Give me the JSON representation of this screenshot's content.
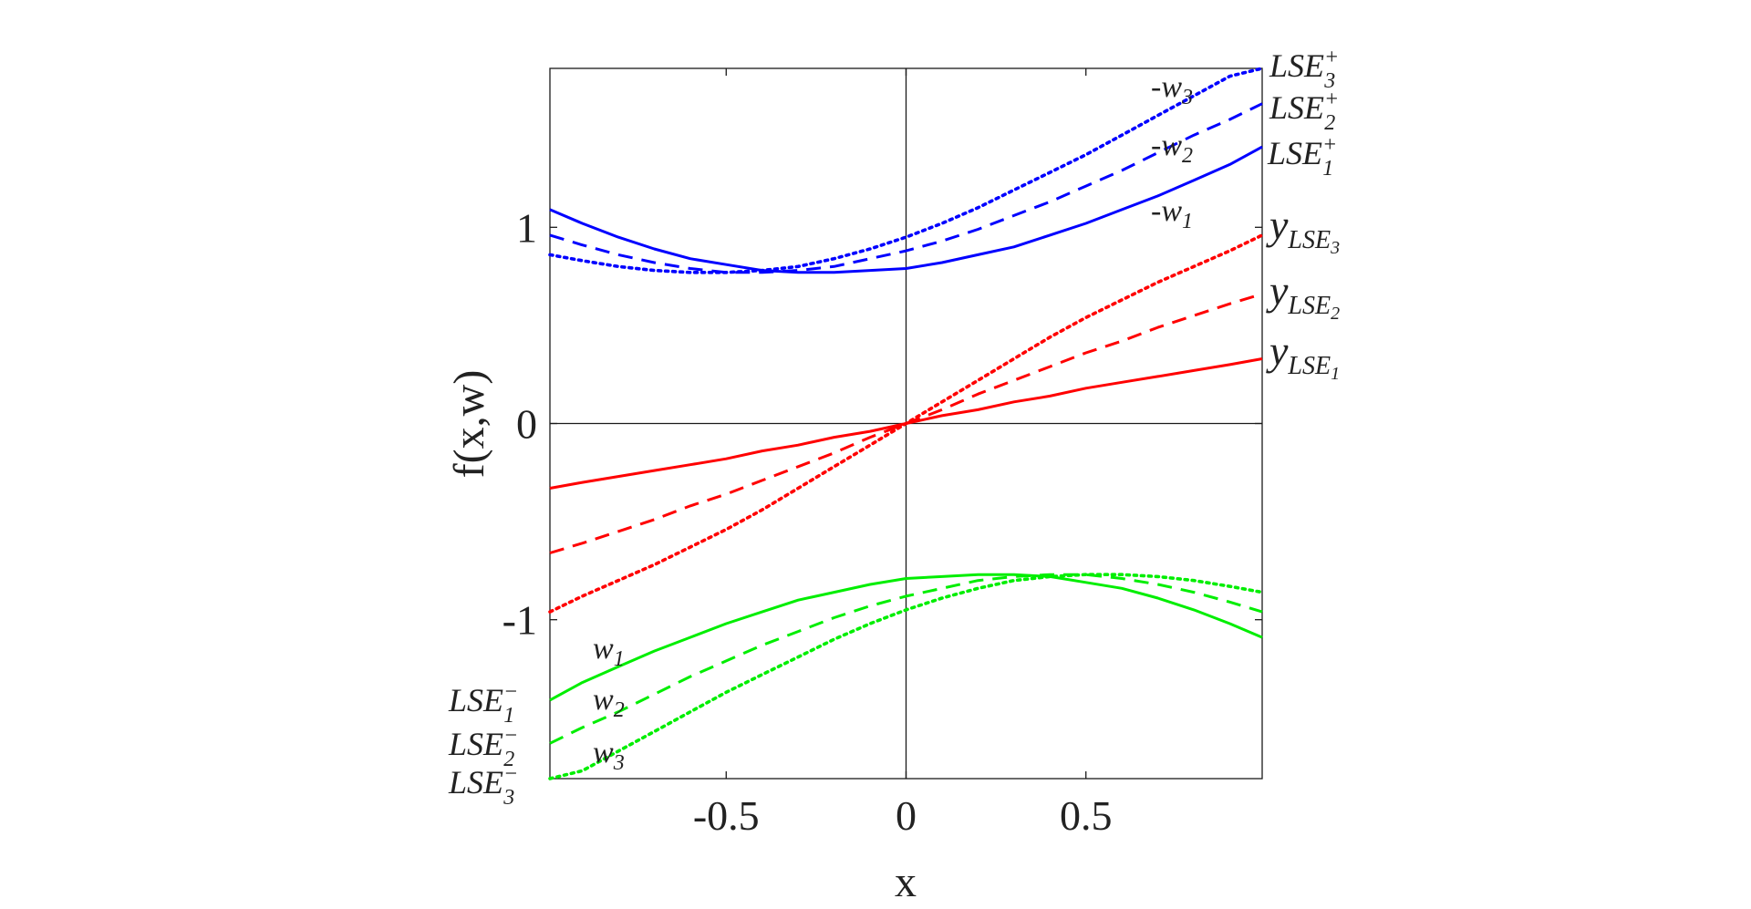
{
  "chart_data": {
    "type": "line",
    "title": "",
    "xlabel": "x",
    "ylabel": "f(x,w)",
    "xlim": [
      -0.99,
      0.99
    ],
    "ylim": [
      -1.81,
      1.81
    ],
    "xticks": [
      -0.5,
      0,
      0.5
    ],
    "xtick_labels": [
      "-0.5",
      "0",
      "0.5"
    ],
    "yticks": [
      -1,
      0,
      1
    ],
    "ytick_labels": [
      "-1",
      "0",
      "1"
    ],
    "grid": false,
    "zero_lines": true,
    "x": [
      -0.99,
      -0.9,
      -0.8,
      -0.7,
      -0.6,
      -0.5,
      -0.4,
      -0.3,
      -0.2,
      -0.1,
      0,
      0.1,
      0.2,
      0.3,
      0.4,
      0.5,
      0.6,
      0.7,
      0.8,
      0.9,
      0.99
    ],
    "series": [
      {
        "name": "LSE1+",
        "group": "upper",
        "color": "#0000ff",
        "dash": "solid",
        "values": [
          1.09,
          1.02,
          0.95,
          0.89,
          0.84,
          0.81,
          0.78,
          0.77,
          0.77,
          0.78,
          0.79,
          0.82,
          0.86,
          0.9,
          0.96,
          1.02,
          1.09,
          1.16,
          1.24,
          1.32,
          1.41
        ]
      },
      {
        "name": "LSE2+",
        "group": "upper",
        "color": "#0000ff",
        "dash": "dashed",
        "values": [
          0.96,
          0.91,
          0.86,
          0.82,
          0.79,
          0.77,
          0.77,
          0.78,
          0.8,
          0.84,
          0.88,
          0.93,
          0.99,
          1.06,
          1.13,
          1.21,
          1.29,
          1.38,
          1.47,
          1.55,
          1.63
        ]
      },
      {
        "name": "LSE3+",
        "group": "upper",
        "color": "#0000ff",
        "dash": "dotted",
        "values": [
          0.86,
          0.83,
          0.8,
          0.78,
          0.77,
          0.77,
          0.78,
          0.8,
          0.84,
          0.89,
          0.95,
          1.02,
          1.1,
          1.19,
          1.28,
          1.37,
          1.47,
          1.57,
          1.67,
          1.77,
          1.81
        ]
      },
      {
        "name": "yLSE1",
        "group": "middle",
        "color": "#ff0000",
        "dash": "solid",
        "values": [
          -0.33,
          -0.3,
          -0.27,
          -0.24,
          -0.21,
          -0.18,
          -0.14,
          -0.11,
          -0.07,
          -0.04,
          0.0,
          0.04,
          0.07,
          0.11,
          0.14,
          0.18,
          0.21,
          0.24,
          0.27,
          0.3,
          0.33
        ]
      },
      {
        "name": "yLSE2",
        "group": "middle",
        "color": "#ff0000",
        "dash": "dashed",
        "values": [
          -0.66,
          -0.61,
          -0.55,
          -0.49,
          -0.42,
          -0.36,
          -0.29,
          -0.22,
          -0.15,
          -0.07,
          0.0,
          0.07,
          0.15,
          0.22,
          0.29,
          0.36,
          0.42,
          0.49,
          0.55,
          0.61,
          0.66
        ]
      },
      {
        "name": "yLSE3",
        "group": "middle",
        "color": "#ff0000",
        "dash": "dotted",
        "values": [
          -0.96,
          -0.88,
          -0.8,
          -0.72,
          -0.63,
          -0.54,
          -0.44,
          -0.33,
          -0.22,
          -0.11,
          0.0,
          0.11,
          0.22,
          0.33,
          0.44,
          0.54,
          0.63,
          0.72,
          0.8,
          0.88,
          0.96
        ]
      },
      {
        "name": "LSE1-",
        "group": "lower",
        "color": "#00ee00",
        "dash": "solid",
        "values": [
          -1.41,
          -1.32,
          -1.24,
          -1.16,
          -1.09,
          -1.02,
          -0.96,
          -0.9,
          -0.86,
          -0.82,
          -0.79,
          -0.78,
          -0.77,
          -0.77,
          -0.78,
          -0.81,
          -0.84,
          -0.89,
          -0.95,
          -1.02,
          -1.09
        ]
      },
      {
        "name": "LSE2-",
        "group": "lower",
        "color": "#00ee00",
        "dash": "dashed",
        "values": [
          -1.63,
          -1.55,
          -1.47,
          -1.38,
          -1.29,
          -1.21,
          -1.13,
          -1.06,
          -0.99,
          -0.93,
          -0.88,
          -0.84,
          -0.8,
          -0.78,
          -0.77,
          -0.77,
          -0.79,
          -0.82,
          -0.86,
          -0.91,
          -0.96
        ]
      },
      {
        "name": "LSE3-",
        "group": "lower",
        "color": "#00ee00",
        "dash": "dotted",
        "values": [
          -1.81,
          -1.77,
          -1.67,
          -1.57,
          -1.47,
          -1.37,
          -1.28,
          -1.19,
          -1.1,
          -1.02,
          -0.95,
          -0.89,
          -0.84,
          -0.8,
          -0.78,
          -0.77,
          -0.77,
          -0.78,
          -0.8,
          -0.83,
          -0.86
        ]
      }
    ],
    "annotations": {
      "upper_right": [
        {
          "base": "LSE",
          "sub": "3",
          "sup": "+"
        },
        {
          "base": "LSE",
          "sub": "2",
          "sup": "+"
        },
        {
          "base": "LSE",
          "sub": "1",
          "sup": "+"
        }
      ],
      "upper_weights": [
        {
          "base": "-w",
          "sub": "3"
        },
        {
          "base": "-w",
          "sub": "2"
        },
        {
          "base": "-w",
          "sub": "1"
        }
      ],
      "middle_right": [
        {
          "base": "y",
          "sub": "LSE",
          "subsub": "3"
        },
        {
          "base": "y",
          "sub": "LSE",
          "subsub": "2"
        },
        {
          "base": "y",
          "sub": "LSE",
          "subsub": "1"
        }
      ],
      "lower_weights": [
        {
          "base": "w",
          "sub": "1"
        },
        {
          "base": "w",
          "sub": "2"
        },
        {
          "base": "w",
          "sub": "3"
        }
      ],
      "lower_left": [
        {
          "base": "LSE",
          "sub": "1",
          "sup": "−"
        },
        {
          "base": "LSE",
          "sub": "2",
          "sup": "−"
        },
        {
          "base": "LSE",
          "sub": "3",
          "sup": "−"
        }
      ]
    }
  }
}
